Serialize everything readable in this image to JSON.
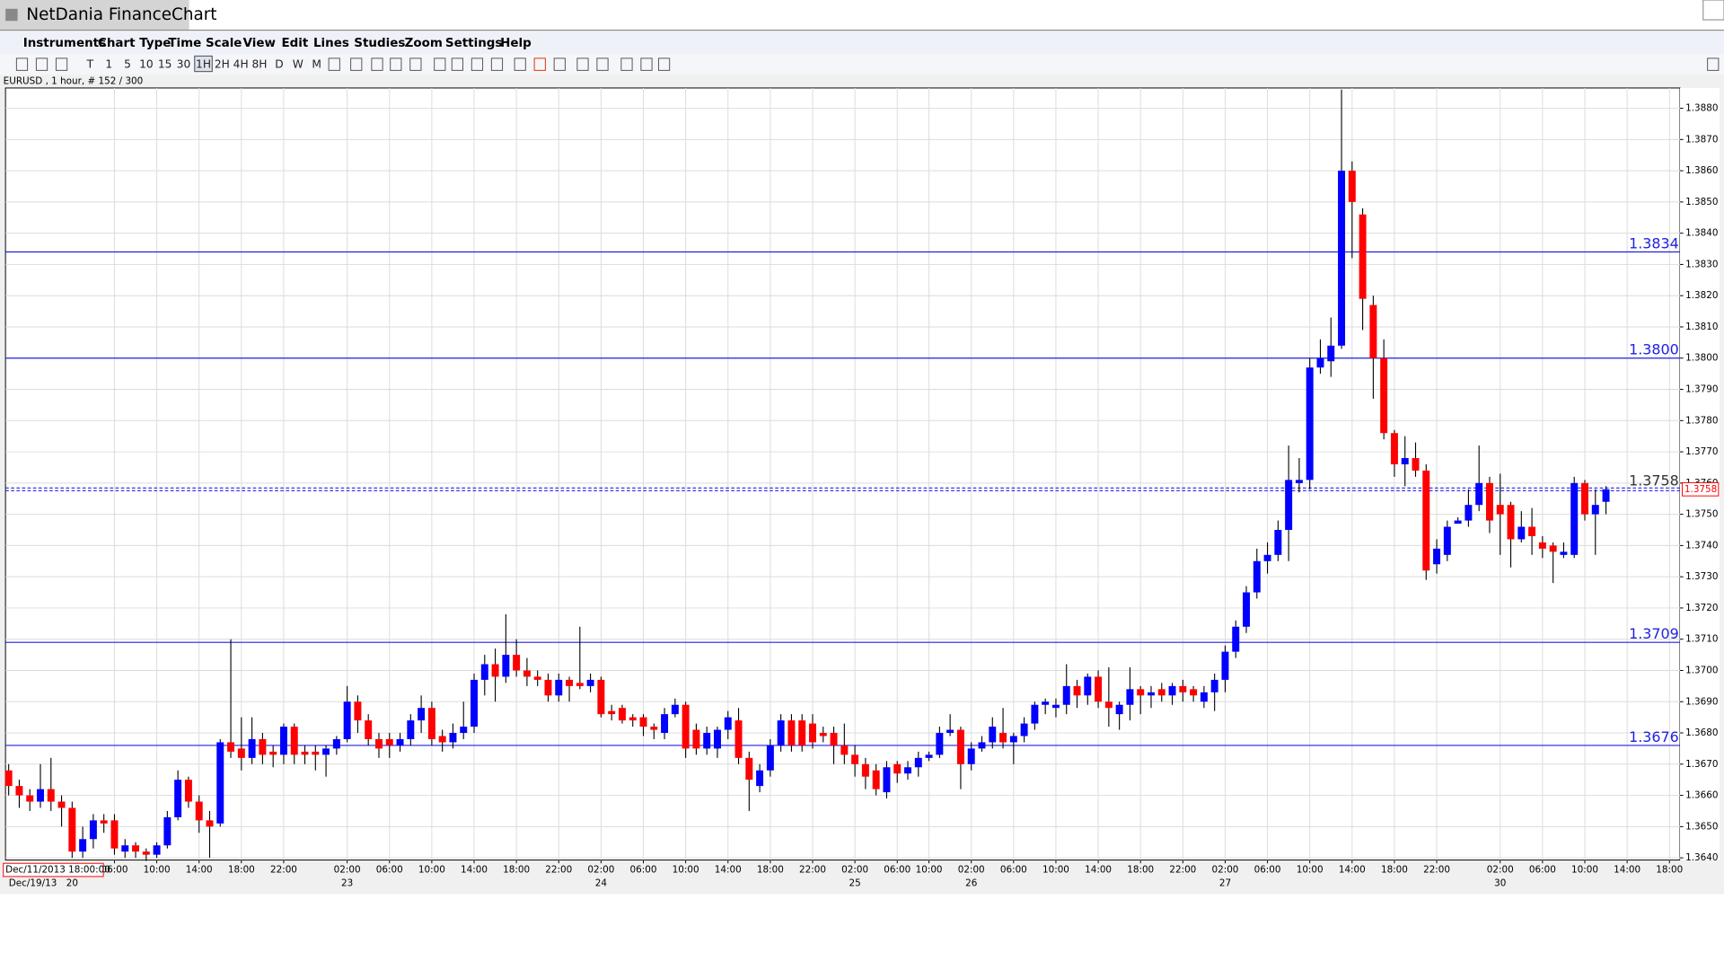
{
  "window": {
    "title": "NetDania FinanceChart",
    "menu": [
      "Instruments",
      "Chart Type",
      "Time Scale",
      "View",
      "Edit",
      "Lines",
      "Studies",
      "Zoom",
      "Settings",
      "Help"
    ],
    "toolbar": [
      "T",
      "1",
      "5",
      "10",
      "15",
      "30",
      "1H",
      "2H",
      "4H",
      "8H",
      "D",
      "W",
      "M"
    ]
  },
  "chart_data": {
    "type": "candlestick",
    "subtitle": "EURUSD , 1 hour, # 152 / 300",
    "up_color": "#0000ff",
    "down_color": "#ff0000",
    "grid": true,
    "open": [
      1.3668,
      1.3663,
      1.366,
      1.3658,
      1.3662,
      1.3658,
      1.3656,
      1.3642,
      1.3646,
      1.3652,
      1.3652,
      1.3642,
      1.3644,
      1.3642,
      1.3641,
      1.3644,
      1.3653,
      1.3665,
      1.3658,
      1.3652,
      1.3651,
      1.3677,
      1.3675,
      1.3672,
      1.3678,
      1.3674,
      1.3673,
      1.3682,
      1.3674,
      1.3674,
      1.3673,
      1.3675,
      1.3678,
      1.369,
      1.3684,
      1.3678,
      1.3678,
      1.3676,
      1.3678,
      1.3684,
      1.3688,
      1.3679,
      1.3677,
      1.368,
      1.3682,
      1.3697,
      1.3702,
      1.3698,
      1.3705,
      1.37,
      1.3698,
      1.3697,
      1.3692,
      1.3697,
      1.3696,
      1.3695,
      1.3697,
      1.3687,
      1.3688,
      1.3685,
      1.3685,
      1.3682,
      1.368,
      1.3686,
      1.3689,
      1.3681,
      1.3675,
      1.3675,
      1.3681,
      1.3684,
      1.3672,
      1.3663,
      1.3668,
      1.3676,
      1.3684,
      1.3684,
      1.3683,
      1.368,
      1.368,
      1.3676,
      1.3673,
      1.367,
      1.3668,
      1.3661,
      1.367,
      1.3667,
      1.3669,
      1.3672,
      1.3673,
      1.368,
      1.3681,
      1.367,
      1.3675,
      1.3677,
      1.368,
      1.3677,
      1.3679,
      1.3683,
      1.3689,
      1.3688,
      1.3689,
      1.3695,
      1.3692,
      1.3698,
      1.369,
      1.3686,
      1.3689,
      1.3694,
      1.3692,
      1.3694,
      1.3692,
      1.3695,
      1.3694,
      1.369,
      1.3693,
      1.3697,
      1.3706,
      1.3714,
      1.3725,
      1.3735,
      1.3737,
      1.3745,
      1.376,
      1.3761,
      1.3797,
      1.3799,
      1.3804,
      1.386,
      1.3846,
      1.3817,
      1.38,
      1.3776,
      1.3766,
      1.3768,
      1.3764,
      1.3734,
      1.3737,
      1.3747,
      1.3748,
      1.3753,
      1.376,
      1.3753,
      1.3753,
      1.3742,
      1.3746,
      1.3741,
      1.374,
      1.3737,
      1.3737,
      1.376,
      1.375,
      1.3754
    ],
    "high": [
      1.367,
      1.3665,
      1.3662,
      1.367,
      1.3672,
      1.366,
      1.3658,
      1.365,
      1.3654,
      1.3654,
      1.3654,
      1.3646,
      1.3645,
      1.3643,
      1.3645,
      1.3655,
      1.3668,
      1.3666,
      1.366,
      1.3655,
      1.3678,
      1.371,
      1.3685,
      1.3685,
      1.368,
      1.3676,
      1.3683,
      1.3683,
      1.3676,
      1.3676,
      1.3676,
      1.3679,
      1.3695,
      1.3692,
      1.3686,
      1.368,
      1.368,
      1.368,
      1.3686,
      1.3692,
      1.369,
      1.3681,
      1.3683,
      1.369,
      1.3699,
      1.3705,
      1.3707,
      1.3718,
      1.371,
      1.3704,
      1.37,
      1.3699,
      1.3699,
      1.3698,
      1.3714,
      1.3699,
      1.3698,
      1.3689,
      1.3689,
      1.3686,
      1.3686,
      1.3683,
      1.3688,
      1.3691,
      1.369,
      1.3683,
      1.3682,
      1.3682,
      1.3687,
      1.3688,
      1.3674,
      1.367,
      1.3678,
      1.3686,
      1.3686,
      1.3686,
      1.3686,
      1.3682,
      1.3682,
      1.3683,
      1.3676,
      1.3672,
      1.367,
      1.3671,
      1.3671,
      1.3671,
      1.3674,
      1.3674,
      1.3682,
      1.3686,
      1.3682,
      1.3677,
      1.3679,
      1.3685,
      1.3688,
      1.368,
      1.3685,
      1.369,
      1.3691,
      1.3691,
      1.3702,
      1.3697,
      1.3699,
      1.37,
      1.3701,
      1.369,
      1.3701,
      1.3695,
      1.3695,
      1.3696,
      1.3696,
      1.3697,
      1.3695,
      1.3695,
      1.3699,
      1.3708,
      1.3716,
      1.3727,
      1.3739,
      1.3741,
      1.3748,
      1.3772,
      1.3768,
      1.38,
      1.3806,
      1.3813,
      1.3886,
      1.3863,
      1.3848,
      1.382,
      1.3806,
      1.3777,
      1.3775,
      1.3773,
      1.3766,
      1.3742,
      1.3748,
      1.3749,
      1.3758,
      1.3772,
      1.3762,
      1.3763,
      1.3754,
      1.3751,
      1.3752,
      1.3743,
      1.3741,
      1.3741,
      1.3762,
      1.3761,
      1.3758,
      1.3759
    ],
    "low": [
      1.366,
      1.3656,
      1.3655,
      1.3656,
      1.3655,
      1.365,
      1.364,
      1.364,
      1.3643,
      1.3648,
      1.3641,
      1.364,
      1.364,
      1.3639,
      1.364,
      1.3643,
      1.3652,
      1.3656,
      1.3648,
      1.364,
      1.365,
      1.3672,
      1.3668,
      1.367,
      1.367,
      1.3669,
      1.367,
      1.367,
      1.367,
      1.3668,
      1.3666,
      1.3673,
      1.3677,
      1.368,
      1.3676,
      1.3672,
      1.3672,
      1.3674,
      1.3676,
      1.368,
      1.3676,
      1.3674,
      1.3675,
      1.3678,
      1.368,
      1.3692,
      1.369,
      1.3696,
      1.3698,
      1.3695,
      1.3695,
      1.369,
      1.369,
      1.369,
      1.3694,
      1.3693,
      1.3685,
      1.3684,
      1.3683,
      1.3682,
      1.3679,
      1.3678,
      1.3678,
      1.3685,
      1.3672,
      1.3673,
      1.3673,
      1.3672,
      1.3678,
      1.367,
      1.3655,
      1.3661,
      1.3666,
      1.3674,
      1.3674,
      1.3674,
      1.3675,
      1.3677,
      1.367,
      1.367,
      1.3666,
      1.3662,
      1.366,
      1.3659,
      1.3664,
      1.3665,
      1.3666,
      1.3671,
      1.3672,
      1.3679,
      1.3662,
      1.3668,
      1.3674,
      1.3675,
      1.3675,
      1.367,
      1.3677,
      1.3681,
      1.3686,
      1.3685,
      1.3686,
      1.3688,
      1.3689,
      1.3688,
      1.3682,
      1.3681,
      1.3684,
      1.3686,
      1.3688,
      1.369,
      1.3689,
      1.369,
      1.369,
      1.3688,
      1.3687,
      1.3693,
      1.3704,
      1.3712,
      1.3723,
      1.3731,
      1.3735,
      1.3735,
      1.3757,
      1.3758,
      1.3795,
      1.3794,
      1.3803,
      1.3832,
      1.3809,
      1.3787,
      1.3774,
      1.3762,
      1.3759,
      1.3762,
      1.3729,
      1.3731,
      1.3735,
      1.3747,
      1.3746,
      1.3751,
      1.3744,
      1.3737,
      1.3733,
      1.3741,
      1.3737,
      1.3736,
      1.3728,
      1.3736,
      1.3736,
      1.3748,
      1.3737,
      1.375
    ],
    "close": [
      1.3663,
      1.366,
      1.3658,
      1.3662,
      1.3658,
      1.3656,
      1.3642,
      1.3646,
      1.3652,
      1.3651,
      1.3643,
      1.3644,
      1.3642,
      1.3641,
      1.3644,
      1.3653,
      1.3665,
      1.3658,
      1.3652,
      1.365,
      1.3677,
      1.3674,
      1.3672,
      1.3678,
      1.3673,
      1.3673,
      1.3682,
      1.3673,
      1.3673,
      1.3673,
      1.3675,
      1.3678,
      1.369,
      1.3684,
      1.3678,
      1.3675,
      1.3676,
      1.3678,
      1.3684,
      1.3688,
      1.3678,
      1.3677,
      1.368,
      1.3682,
      1.3697,
      1.3702,
      1.3698,
      1.3705,
      1.37,
      1.3698,
      1.3697,
      1.3692,
      1.3697,
      1.3695,
      1.3695,
      1.3697,
      1.3686,
      1.3686,
      1.3684,
      1.3684,
      1.3682,
      1.3681,
      1.3686,
      1.3689,
      1.3675,
      1.3675,
      1.368,
      1.3681,
      1.3685,
      1.3672,
      1.3665,
      1.3668,
      1.3676,
      1.3684,
      1.3676,
      1.3676,
      1.3677,
      1.3679,
      1.3676,
      1.3673,
      1.367,
      1.3666,
      1.3662,
      1.3669,
      1.3667,
      1.3669,
      1.3672,
      1.3673,
      1.368,
      1.3681,
      1.367,
      1.3675,
      1.3677,
      1.3682,
      1.3677,
      1.3679,
      1.3683,
      1.3689,
      1.369,
      1.3689,
      1.3695,
      1.3692,
      1.3698,
      1.369,
      1.3688,
      1.3689,
      1.3694,
      1.3692,
      1.3693,
      1.3692,
      1.3695,
      1.3693,
      1.3692,
      1.3693,
      1.3697,
      1.3706,
      1.3714,
      1.3725,
      1.3735,
      1.3737,
      1.3745,
      1.3761,
      1.3761,
      1.3797,
      1.38,
      1.3804,
      1.386,
      1.385,
      1.3819,
      1.38,
      1.3776,
      1.3766,
      1.3768,
      1.3764,
      1.3732,
      1.3739,
      1.3746,
      1.3748,
      1.3753,
      1.376,
      1.3748,
      1.375,
      1.3742,
      1.3746,
      1.3743,
      1.3739,
      1.3738,
      1.3738,
      1.376,
      1.375,
      1.3753,
      1.3758
    ],
    "xlim": [
      -0.3,
      158
    ],
    "ylim": [
      1.36393,
      1.38865
    ],
    "yticks": [
      {
        "value": 1.364,
        "label": "1.3640"
      },
      {
        "value": 1.365,
        "label": "1.3650"
      },
      {
        "value": 1.366,
        "label": "1.3660"
      },
      {
        "value": 1.367,
        "label": "1.3670"
      },
      {
        "value": 1.368,
        "label": "1.3680"
      },
      {
        "value": 1.369,
        "label": "1.3690"
      },
      {
        "value": 1.37,
        "label": "1.3700"
      },
      {
        "value": 1.371,
        "label": "1.3710"
      },
      {
        "value": 1.372,
        "label": "1.3720"
      },
      {
        "value": 1.373,
        "label": "1.3730"
      },
      {
        "value": 1.374,
        "label": "1.3740"
      },
      {
        "value": 1.375,
        "label": "1.3750"
      },
      {
        "value": 1.376,
        "label": "1.3760"
      },
      {
        "value": 1.377,
        "label": "1.3770"
      },
      {
        "value": 1.378,
        "label": "1.3780"
      },
      {
        "value": 1.379,
        "label": "1.3790"
      },
      {
        "value": 1.38,
        "label": "1.3800"
      },
      {
        "value": 1.381,
        "label": "1.3810"
      },
      {
        "value": 1.382,
        "label": "1.3820"
      },
      {
        "value": 1.383,
        "label": "1.3830"
      },
      {
        "value": 1.384,
        "label": "1.3840"
      },
      {
        "value": 1.385,
        "label": "1.3850"
      },
      {
        "value": 1.386,
        "label": "1.3860"
      },
      {
        "value": 1.387,
        "label": "1.3870"
      },
      {
        "value": 1.388,
        "label": "1.3880"
      }
    ],
    "xticks": [
      {
        "value": 10,
        "label": "06:00"
      },
      {
        "value": 14,
        "label": "10:00"
      },
      {
        "value": 18,
        "label": "14:00"
      },
      {
        "value": 22,
        "label": "18:00"
      },
      {
        "value": 26,
        "label": "22:00"
      },
      {
        "value": 32,
        "label": "02:00"
      },
      {
        "value": 36,
        "label": "06:00"
      },
      {
        "value": 40,
        "label": "10:00"
      },
      {
        "value": 44,
        "label": "14:00"
      },
      {
        "value": 48,
        "label": "18:00"
      },
      {
        "value": 52,
        "label": "22:00"
      },
      {
        "value": 56,
        "label": "02:00"
      },
      {
        "value": 60,
        "label": "06:00"
      },
      {
        "value": 64,
        "label": "10:00"
      },
      {
        "value": 68,
        "label": "14:00"
      },
      {
        "value": 72,
        "label": "18:00"
      },
      {
        "value": 76,
        "label": "22:00"
      },
      {
        "value": 80,
        "label": "02:00"
      },
      {
        "value": 84,
        "label": "06:00"
      },
      {
        "value": 87,
        "label": "10:00"
      },
      {
        "value": 91,
        "label": "02:00"
      },
      {
        "value": 95,
        "label": "06:00"
      },
      {
        "value": 99,
        "label": "10:00"
      },
      {
        "value": 103,
        "label": "14:00"
      },
      {
        "value": 107,
        "label": "18:00"
      },
      {
        "value": 111,
        "label": "22:00"
      },
      {
        "value": 115,
        "label": "02:00"
      },
      {
        "value": 119,
        "label": "06:00"
      },
      {
        "value": 123,
        "label": "10:00"
      },
      {
        "value": 127,
        "label": "14:00"
      },
      {
        "value": 131,
        "label": "18:00"
      },
      {
        "value": 135,
        "label": "22:00"
      },
      {
        "value": 141,
        "label": "02:00"
      },
      {
        "value": 145,
        "label": "06:00"
      },
      {
        "value": 149,
        "label": "10:00"
      },
      {
        "value": 153,
        "label": "14:00"
      },
      {
        "value": 157,
        "label": "18:00"
      }
    ],
    "day_labels": [
      {
        "value": 6,
        "label": "20"
      },
      {
        "value": 32,
        "label": "23"
      },
      {
        "value": 56,
        "label": "24"
      },
      {
        "value": 80,
        "label": "25"
      },
      {
        "value": 91,
        "label": "26"
      },
      {
        "value": 115,
        "label": "27"
      },
      {
        "value": 141,
        "label": "30"
      }
    ],
    "start_date_label": "Dec/19/13",
    "cursor_label": "Dec/11/2013 18:00:00",
    "levels": [
      {
        "value": 1.3834,
        "label": "1.3834"
      },
      {
        "value": 1.38,
        "label": "1.3800"
      },
      {
        "value": 1.3709,
        "label": "1.3709"
      },
      {
        "value": 1.3676,
        "label": "1.3676"
      }
    ],
    "last_price": {
      "value": 1.3758,
      "label": "1.3758"
    }
  }
}
